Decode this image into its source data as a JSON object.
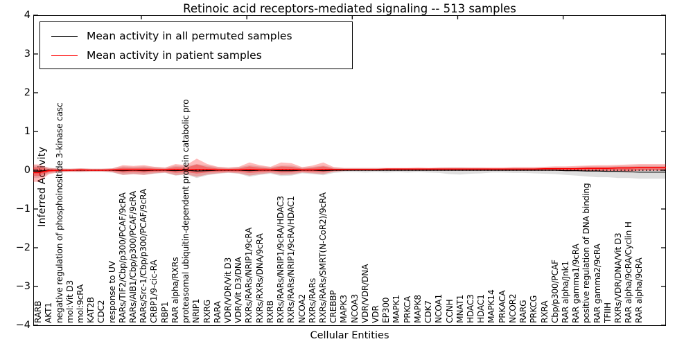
{
  "title": "Retinoic acid receptors-mediated signaling -- 513 samples",
  "legend": {
    "items": [
      {
        "label": "Mean activity in all permuted samples",
        "color": "#000000"
      },
      {
        "label": "Mean activity in patient samples",
        "color": "#ff0000"
      }
    ]
  },
  "axes": {
    "xlabel": "Cellular Entities",
    "ylabel": "Inferred Activity",
    "ytick_labels": [
      "4",
      "3",
      "2",
      "1",
      "0",
      "−1",
      "−2",
      "−3",
      "−4"
    ],
    "ytick_values": [
      4,
      3,
      2,
      1,
      0,
      -1,
      -2,
      -3,
      -4
    ]
  },
  "colors": {
    "permuted_line": "#000000",
    "patient_line": "#ff0000",
    "permuted_band": "rgba(0,0,0,0.13)",
    "patient_band": "rgba(255,0,0,0.27)",
    "patient_band_core": "rgba(255,0,0,0.33)",
    "zero_line": "#000000"
  },
  "chart_data": {
    "type": "line",
    "title": "Retinoic acid receptors-mediated signaling -- 513 samples",
    "xlabel": "Cellular Entities",
    "ylabel": "Inferred Activity",
    "ylim": [
      -4,
      4
    ],
    "grid": false,
    "legend_position": "upper left",
    "categories": [
      "RARB",
      "AKT1",
      "negative regulation of phosphoinositide 3-kinase casc",
      "mol:Vit D3",
      "mol:9cRA",
      "KAT2B",
      "CDC2",
      "response to UV",
      "RARs/TIF2/Cbp/p300/PCAF/9cRA",
      "RARs/AIB1/Cbp/p300/PCAF/9cRA",
      "RARs/Src-1/Cbp/p300/PCAF/9cRA",
      "CRBP1/9-cic-RA",
      "RBP1",
      "RAR alpha/RXRs",
      "proteasomal ubiquitin-dependent protein catabolic pro",
      "NRIP1",
      "RXRG",
      "RARA",
      "VDR/VDR/Vit D3",
      "VDR/Vit D3/DNA",
      "RXRs/RARs/NRIP1/9cRA",
      "RXRs/RXRs/DNA/9cRA",
      "RXRB",
      "RXRs/RARs/NRIP1/9cRA/HDAC3",
      "RXRs/RARs/NRIP1/9cRA/HDAC1",
      "NCOA2",
      "RXRs/RARs",
      "RXRs/RARs/SMRT(N-CoR2)/9cRA",
      "CREBBP",
      "MAPK3",
      "NCOA3",
      "VDR/VDR/DNA",
      "VDR",
      "EP300",
      "MAPK1",
      "PRKCA",
      "MAPK8",
      "CDK7",
      "NCOA1",
      "CCNH",
      "MNAT1",
      "HDAC3",
      "HDAC1",
      "MAPK14",
      "PRKACA",
      "NCOR2",
      "RARG",
      "PRKCG",
      "RXRA",
      "Cbp/p300/PCAF",
      "RAR alpha/Jnk1",
      "RAR gamma1/9cRA",
      "positive regulation of DNA binding",
      "RAR gamma2/9cRA",
      "TFIIH",
      "RXRs/VDR/DNA/Vit D3",
      "RAR alpha/9cRA/Cyclin H",
      "RAR alpha/9cRA"
    ],
    "series": [
      {
        "name": "Mean activity in all permuted samples",
        "color": "#000000",
        "values": [
          -0.03,
          0,
          0,
          0,
          0,
          0,
          0,
          0,
          -0.01,
          0,
          -0.01,
          0,
          0,
          -0.01,
          0,
          -0.02,
          -0.01,
          0,
          0,
          0,
          -0.01,
          0,
          0,
          -0.01,
          -0.01,
          0,
          0,
          -0.01,
          0,
          0,
          0,
          0,
          0,
          0,
          0,
          0,
          0,
          0,
          0,
          0,
          0,
          0,
          0,
          0,
          0,
          0,
          0,
          0,
          0,
          0,
          -0.01,
          -0.01,
          -0.02,
          -0.02,
          -0.03,
          -0.03,
          -0.04,
          -0.05
        ]
      },
      {
        "name": "Mean activity in patient samples",
        "color": "#ff0000",
        "values": [
          -0.06,
          -0.01,
          0,
          0,
          0.01,
          0,
          0,
          0.01,
          0.01,
          0.01,
          0.01,
          0.01,
          0.01,
          0.02,
          0.01,
          0.02,
          0.02,
          0.01,
          0.01,
          0.01,
          0.02,
          0.01,
          0.01,
          0.02,
          0.02,
          0.01,
          0.01,
          0.02,
          0.02,
          0.02,
          0.02,
          0.02,
          0.02,
          0.03,
          0.03,
          0.03,
          0.03,
          0.03,
          0.03,
          0.03,
          0.03,
          0.03,
          0.03,
          0.03,
          0.03,
          0.03,
          0.03,
          0.03,
          0.04,
          0.04,
          0.04,
          0.04,
          0.05,
          0.05,
          0.05,
          0.06,
          0.06,
          0.07
        ]
      }
    ],
    "bands": [
      {
        "name": "permuted activity range",
        "upper": [
          0.12,
          0.06,
          0.05,
          0.04,
          0.05,
          0.04,
          0.04,
          0.05,
          0.1,
          0.09,
          0.1,
          0.08,
          0.06,
          0.12,
          0.1,
          0.16,
          0.12,
          0.08,
          0.06,
          0.08,
          0.13,
          0.1,
          0.08,
          0.12,
          0.12,
          0.07,
          0.09,
          0.12,
          0.07,
          0.05,
          0.05,
          0.05,
          0.05,
          0.05,
          0.05,
          0.05,
          0.05,
          0.05,
          0.06,
          0.07,
          0.07,
          0.06,
          0.06,
          0.05,
          0.05,
          0.06,
          0.06,
          0.06,
          0.07,
          0.08,
          0.08,
          0.09,
          0.1,
          0.1,
          0.1,
          0.11,
          0.11,
          0.12
        ],
        "lower": [
          -0.2,
          -0.08,
          -0.05,
          -0.04,
          -0.05,
          -0.04,
          -0.04,
          -0.06,
          -0.12,
          -0.1,
          -0.12,
          -0.09,
          -0.07,
          -0.14,
          -0.11,
          -0.2,
          -0.13,
          -0.09,
          -0.07,
          -0.09,
          -0.17,
          -0.12,
          -0.09,
          -0.15,
          -0.14,
          -0.08,
          -0.1,
          -0.13,
          -0.07,
          -0.05,
          -0.05,
          -0.06,
          -0.05,
          -0.06,
          -0.05,
          -0.06,
          -0.05,
          -0.06,
          -0.07,
          -0.1,
          -0.11,
          -0.09,
          -0.08,
          -0.06,
          -0.06,
          -0.07,
          -0.07,
          -0.08,
          -0.09,
          -0.1,
          -0.12,
          -0.14,
          -0.16,
          -0.18,
          -0.18,
          -0.2,
          -0.2,
          -0.22
        ]
      },
      {
        "name": "patient activity range",
        "upper": [
          0.15,
          0.06,
          0.04,
          0.04,
          0.05,
          0.04,
          0.04,
          0.05,
          0.13,
          0.11,
          0.13,
          0.09,
          0.07,
          0.16,
          0.13,
          0.3,
          0.16,
          0.09,
          0.07,
          0.09,
          0.2,
          0.13,
          0.09,
          0.2,
          0.18,
          0.08,
          0.12,
          0.2,
          0.08,
          0.06,
          0.06,
          0.06,
          0.06,
          0.06,
          0.06,
          0.06,
          0.07,
          0.06,
          0.07,
          0.07,
          0.07,
          0.07,
          0.07,
          0.07,
          0.07,
          0.08,
          0.08,
          0.08,
          0.09,
          0.1,
          0.1,
          0.11,
          0.12,
          0.13,
          0.13,
          0.14,
          0.15,
          0.16
        ],
        "lower": [
          -0.3,
          -0.1,
          -0.05,
          -0.04,
          -0.04,
          -0.03,
          -0.03,
          -0.05,
          -0.12,
          -0.1,
          -0.12,
          -0.08,
          -0.06,
          -0.13,
          -0.1,
          -0.17,
          -0.11,
          -0.08,
          -0.06,
          -0.08,
          -0.14,
          -0.1,
          -0.07,
          -0.12,
          -0.11,
          -0.06,
          -0.08,
          -0.1,
          -0.04,
          -0.02,
          -0.01,
          -0.01,
          -0.01,
          -0.01,
          -0.01,
          -0.01,
          -0.01,
          -0.01,
          -0.01,
          -0.01,
          -0.01,
          -0.01,
          -0.01,
          -0.01,
          -0.01,
          -0.01,
          -0.01,
          -0.01,
          -0.01,
          -0.01,
          -0.02,
          -0.02,
          -0.02,
          -0.02,
          -0.02,
          -0.02,
          -0.03,
          -0.01
        ]
      }
    ]
  }
}
